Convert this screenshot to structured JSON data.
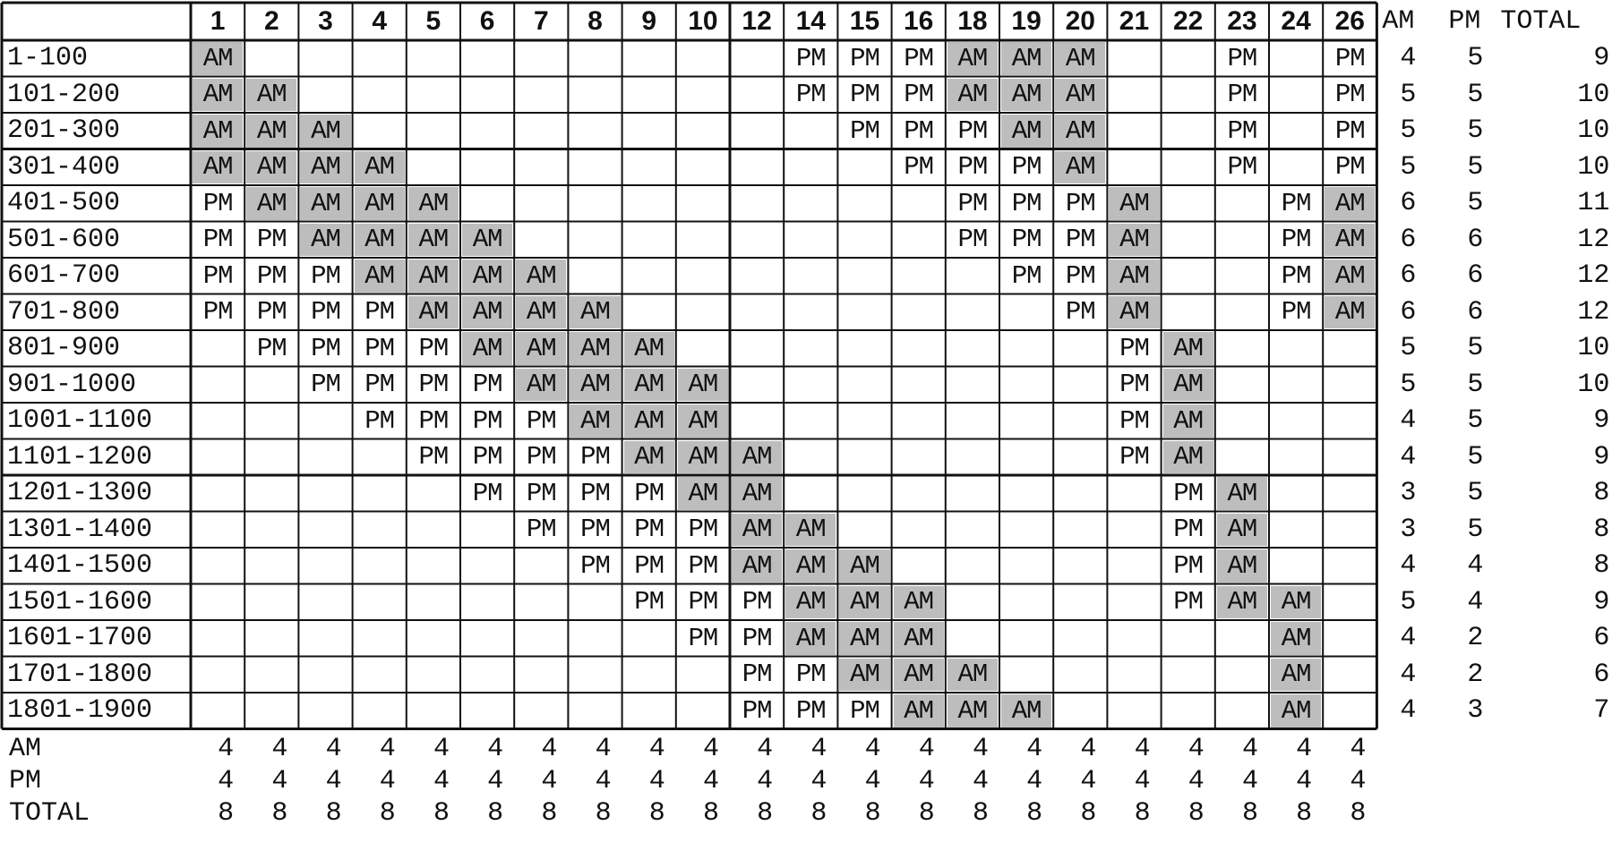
{
  "table": {
    "columns": [
      "1",
      "2",
      "3",
      "4",
      "5",
      "6",
      "7",
      "8",
      "9",
      "10",
      "12",
      "14",
      "15",
      "16",
      "18",
      "19",
      "20",
      "21",
      "22",
      "23",
      "24",
      "26"
    ],
    "side_headers": {
      "am": "AM",
      "pm": "PM",
      "total": "TOTAL"
    },
    "rows": [
      {
        "label": "1-100",
        "cells": [
          "AM",
          "",
          "",
          "",
          "",
          "",
          "",
          "",
          "",
          "",
          "",
          "PM",
          "PM",
          "PM",
          "AM",
          "AM",
          "AM",
          "",
          "",
          "PM",
          "",
          "PM"
        ],
        "am": "4",
        "pm": "5",
        "total": "9"
      },
      {
        "label": "101-200",
        "cells": [
          "AM",
          "AM",
          "",
          "",
          "",
          "",
          "",
          "",
          "",
          "",
          "",
          "PM",
          "PM",
          "PM",
          "AM",
          "AM",
          "AM",
          "",
          "",
          "PM",
          "",
          "PM"
        ],
        "am": "5",
        "pm": "5",
        "total": "10"
      },
      {
        "label": "201-300",
        "cells": [
          "AM",
          "AM",
          "AM",
          "",
          "",
          "",
          "",
          "",
          "",
          "",
          "",
          "",
          "PM",
          "PM",
          "PM",
          "AM",
          "AM",
          "",
          "",
          "PM",
          "",
          "PM"
        ],
        "am": "5",
        "pm": "5",
        "total": "10"
      },
      {
        "label": "301-400",
        "cells": [
          "AM",
          "AM",
          "AM",
          "AM",
          "",
          "",
          "",
          "",
          "",
          "",
          "",
          "",
          "",
          "PM",
          "PM",
          "PM",
          "AM",
          "",
          "",
          "PM",
          "",
          "PM"
        ],
        "am": "5",
        "pm": "5",
        "total": "10"
      },
      {
        "label": "401-500",
        "cells": [
          "PM",
          "AM",
          "AM",
          "AM",
          "AM",
          "",
          "",
          "",
          "",
          "",
          "",
          "",
          "",
          "",
          "PM",
          "PM",
          "PM",
          "AM",
          "",
          "",
          "PM",
          "AM"
        ],
        "am": "6",
        "pm": "5",
        "total": "11"
      },
      {
        "label": "501-600",
        "cells": [
          "PM",
          "PM",
          "AM",
          "AM",
          "AM",
          "AM",
          "",
          "",
          "",
          "",
          "",
          "",
          "",
          "",
          "PM",
          "PM",
          "PM",
          "AM",
          "",
          "",
          "PM",
          "AM"
        ],
        "am": "6",
        "pm": "6",
        "total": "12"
      },
      {
        "label": "601-700",
        "cells": [
          "PM",
          "PM",
          "PM",
          "AM",
          "AM",
          "AM",
          "AM",
          "",
          "",
          "",
          "",
          "",
          "",
          "",
          "",
          "PM",
          "PM",
          "AM",
          "",
          "",
          "PM",
          "AM"
        ],
        "am": "6",
        "pm": "6",
        "total": "12"
      },
      {
        "label": "701-800",
        "cells": [
          "PM",
          "PM",
          "PM",
          "PM",
          "AM",
          "AM",
          "AM",
          "AM",
          "",
          "",
          "",
          "",
          "",
          "",
          "",
          "",
          "PM",
          "AM",
          "",
          "",
          "PM",
          "AM"
        ],
        "am": "6",
        "pm": "6",
        "total": "12"
      },
      {
        "label": "801-900",
        "cells": [
          "",
          "PM",
          "PM",
          "PM",
          "PM",
          "AM",
          "AM",
          "AM",
          "AM",
          "",
          "",
          "",
          "",
          "",
          "",
          "",
          "",
          "PM",
          "AM",
          "",
          "",
          ""
        ],
        "am": "5",
        "pm": "5",
        "total": "10"
      },
      {
        "label": "901-1000",
        "cells": [
          "",
          "",
          "PM",
          "PM",
          "PM",
          "PM",
          "AM",
          "AM",
          "AM",
          "AM",
          "",
          "",
          "",
          "",
          "",
          "",
          "",
          "PM",
          "AM",
          "",
          "",
          ""
        ],
        "am": "5",
        "pm": "5",
        "total": "10"
      },
      {
        "label": "1001-1100",
        "cells": [
          "",
          "",
          "",
          "PM",
          "PM",
          "PM",
          "PM",
          "AM",
          "AM",
          "AM",
          "",
          "",
          "",
          "",
          "",
          "",
          "",
          "PM",
          "AM",
          "",
          "",
          ""
        ],
        "am": "4",
        "pm": "5",
        "total": "9"
      },
      {
        "label": "1101-1200",
        "cells": [
          "",
          "",
          "",
          "",
          "PM",
          "PM",
          "PM",
          "PM",
          "AM",
          "AM",
          "AM",
          "",
          "",
          "",
          "",
          "",
          "",
          "PM",
          "AM",
          "",
          "",
          ""
        ],
        "am": "4",
        "pm": "5",
        "total": "9"
      },
      {
        "label": "1201-1300",
        "cells": [
          "",
          "",
          "",
          "",
          "",
          "PM",
          "PM",
          "PM",
          "PM",
          "AM",
          "AM",
          "",
          "",
          "",
          "",
          "",
          "",
          "",
          "PM",
          "AM",
          "",
          ""
        ],
        "am": "3",
        "pm": "5",
        "total": "8"
      },
      {
        "label": "1301-1400",
        "cells": [
          "",
          "",
          "",
          "",
          "",
          "",
          "PM",
          "PM",
          "PM",
          "PM",
          "AM",
          "AM",
          "",
          "",
          "",
          "",
          "",
          "",
          "PM",
          "AM",
          "",
          ""
        ],
        "am": "3",
        "pm": "5",
        "total": "8"
      },
      {
        "label": "1401-1500",
        "cells": [
          "",
          "",
          "",
          "",
          "",
          "",
          "",
          "PM",
          "PM",
          "PM",
          "AM",
          "AM",
          "AM",
          "",
          "",
          "",
          "",
          "",
          "PM",
          "AM",
          "",
          ""
        ],
        "am": "4",
        "pm": "4",
        "total": "8"
      },
      {
        "label": "1501-1600",
        "cells": [
          "",
          "",
          "",
          "",
          "",
          "",
          "",
          "",
          "PM",
          "PM",
          "PM",
          "AM",
          "AM",
          "AM",
          "",
          "",
          "",
          "",
          "PM",
          "AM",
          "AM",
          ""
        ],
        "am": "5",
        "pm": "4",
        "total": "9"
      },
      {
        "label": "1601-1700",
        "cells": [
          "",
          "",
          "",
          "",
          "",
          "",
          "",
          "",
          "",
          "PM",
          "PM",
          "AM",
          "AM",
          "AM",
          "",
          "",
          "",
          "",
          "",
          "",
          "AM",
          ""
        ],
        "am": "4",
        "pm": "2",
        "total": "6"
      },
      {
        "label": "1701-1800",
        "cells": [
          "",
          "",
          "",
          "",
          "",
          "",
          "",
          "",
          "",
          "",
          "PM",
          "PM",
          "AM",
          "AM",
          "AM",
          "",
          "",
          "",
          "",
          "",
          "AM",
          ""
        ],
        "am": "4",
        "pm": "2",
        "total": "6"
      },
      {
        "label": "1801-1900",
        "cells": [
          "",
          "",
          "",
          "",
          "",
          "",
          "",
          "",
          "",
          "",
          "PM",
          "PM",
          "PM",
          "AM",
          "AM",
          "AM",
          "",
          "",
          "",
          "",
          "AM",
          ""
        ],
        "am": "4",
        "pm": "3",
        "total": "7"
      }
    ],
    "summary": [
      {
        "label": "AM",
        "values": [
          "4",
          "4",
          "4",
          "4",
          "4",
          "4",
          "4",
          "4",
          "4",
          "4",
          "4",
          "4",
          "4",
          "4",
          "4",
          "4",
          "4",
          "4",
          "4",
          "4",
          "4",
          "4"
        ]
      },
      {
        "label": "PM",
        "values": [
          "4",
          "4",
          "4",
          "4",
          "4",
          "4",
          "4",
          "4",
          "4",
          "4",
          "4",
          "4",
          "4",
          "4",
          "4",
          "4",
          "4",
          "4",
          "4",
          "4",
          "4",
          "4"
        ]
      },
      {
        "label": "TOTAL",
        "values": [
          "8",
          "8",
          "8",
          "8",
          "8",
          "8",
          "8",
          "8",
          "8",
          "8",
          "8",
          "8",
          "8",
          "8",
          "8",
          "8",
          "8",
          "8",
          "8",
          "8",
          "8",
          "8"
        ]
      }
    ],
    "colors": {
      "am_fill": "#bdbdbd",
      "grid_line": "#111111"
    }
  }
}
